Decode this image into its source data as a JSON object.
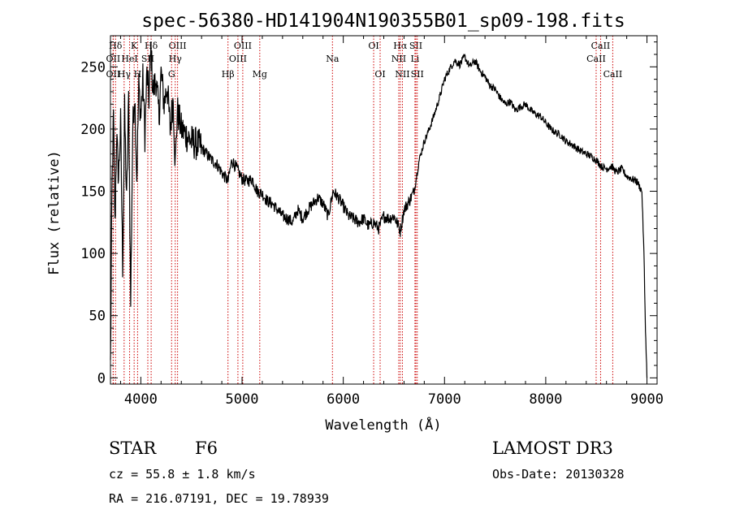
{
  "chart_data": {
    "type": "line",
    "title": "spec-56380-HD141904N190355B01_sp09-198.fits",
    "xlabel": "Wavelength (Å)",
    "ylabel": "Flux (relative)",
    "xlim": [
      3700,
      9100
    ],
    "ylim": [
      -5,
      275
    ],
    "xticks": [
      4000,
      5000,
      6000,
      7000,
      8000,
      9000
    ],
    "yticks": [
      0,
      50,
      100,
      150,
      200,
      250
    ],
    "grid": false,
    "series": [
      {
        "name": "spectrum",
        "x": [
          3700,
          3715,
          3730,
          3745,
          3760,
          3780,
          3800,
          3820,
          3840,
          3860,
          3880,
          3900,
          3920,
          3940,
          3960,
          3980,
          4000,
          4020,
          4040,
          4060,
          4080,
          4100,
          4120,
          4150,
          4180,
          4200,
          4230,
          4260,
          4290,
          4320,
          4340,
          4360,
          4400,
          4450,
          4500,
          4550,
          4600,
          4650,
          4700,
          4750,
          4800,
          4861,
          4900,
          4950,
          5000,
          5050,
          5100,
          5150,
          5200,
          5250,
          5300,
          5350,
          5400,
          5450,
          5500,
          5550,
          5600,
          5650,
          5700,
          5750,
          5800,
          5850,
          5900,
          5950,
          6000,
          6050,
          6100,
          6150,
          6200,
          6250,
          6300,
          6350,
          6400,
          6450,
          6500,
          6530,
          6563,
          6600,
          6650,
          6700,
          6750,
          6800,
          6850,
          6900,
          6950,
          7000,
          7050,
          7100,
          7150,
          7200,
          7250,
          7300,
          7350,
          7400,
          7450,
          7500,
          7550,
          7600,
          7650,
          7700,
          7750,
          7800,
          7850,
          7900,
          7950,
          8000,
          8050,
          8100,
          8150,
          8200,
          8250,
          8300,
          8350,
          8400,
          8450,
          8500,
          8550,
          8600,
          8650,
          8700,
          8750,
          8800,
          8850,
          8900,
          8950,
          8970,
          8985,
          9000
        ],
        "values": [
          10,
          150,
          210,
          120,
          195,
          160,
          205,
          90,
          215,
          140,
          225,
          60,
          200,
          230,
          160,
          235,
          210,
          240,
          195,
          245,
          225,
          265,
          230,
          240,
          210,
          245,
          220,
          235,
          200,
          225,
          170,
          215,
          200,
          195,
          190,
          188,
          185,
          180,
          175,
          172,
          165,
          158,
          175,
          168,
          160,
          158,
          160,
          150,
          148,
          142,
          140,
          135,
          130,
          128,
          125,
          135,
          128,
          135,
          140,
          145,
          140,
          130,
          150,
          145,
          138,
          130,
          128,
          125,
          128,
          122,
          125,
          120,
          130,
          128,
          130,
          125,
          118,
          135,
          142,
          150,
          175,
          190,
          200,
          212,
          225,
          240,
          248,
          255,
          252,
          258,
          250,
          255,
          247,
          242,
          235,
          232,
          225,
          220,
          222,
          215,
          218,
          220,
          215,
          212,
          210,
          205,
          200,
          197,
          195,
          190,
          188,
          185,
          182,
          180,
          178,
          175,
          170,
          168,
          170,
          165,
          168,
          162,
          160,
          158,
          150,
          100,
          40,
          0
        ]
      }
    ],
    "spectral_lines": [
      {
        "label": "Hδ",
        "wavelength": 3750,
        "row": 1
      },
      {
        "label": "K",
        "wavelength": 3934,
        "row": 1
      },
      {
        "label": "Hδ",
        "wavelength": 4102,
        "row": 1
      },
      {
        "label": "OII",
        "wavelength": 3727,
        "row": 2
      },
      {
        "label": "HeI",
        "wavelength": 3889,
        "row": 2
      },
      {
        "label": "SII",
        "wavelength": 4069,
        "row": 2
      },
      {
        "label": "OII",
        "wavelength": 3727,
        "row": 3
      },
      {
        "label": "Hγ",
        "wavelength": 3835,
        "row": 3
      },
      {
        "label": "H",
        "wavelength": 3968,
        "row": 3
      },
      {
        "label": "OIII",
        "wavelength": 4363,
        "row": 1
      },
      {
        "label": "Hγ",
        "wavelength": 4340,
        "row": 2
      },
      {
        "label": "G",
        "wavelength": 4304,
        "row": 3
      },
      {
        "label": "Hβ",
        "wavelength": 4861,
        "row": 3
      },
      {
        "label": "OIII",
        "wavelength": 5007,
        "row": 1
      },
      {
        "label": "OIII",
        "wavelength": 4959,
        "row": 2
      },
      {
        "label": "Mg",
        "wavelength": 5175,
        "row": 3
      },
      {
        "label": "Na",
        "wavelength": 5893,
        "row": 2
      },
      {
        "label": "OI",
        "wavelength": 6300,
        "row": 1
      },
      {
        "label": "OI",
        "wavelength": 6364,
        "row": 3
      },
      {
        "label": "Hα",
        "wavelength": 6563,
        "row": 1
      },
      {
        "label": "SII",
        "wavelength": 6717,
        "row": 1
      },
      {
        "label": "NII",
        "wavelength": 6548,
        "row": 2
      },
      {
        "label": "Li",
        "wavelength": 6708,
        "row": 2
      },
      {
        "label": "NII",
        "wavelength": 6584,
        "row": 3
      },
      {
        "label": "SII",
        "wavelength": 6731,
        "row": 3
      },
      {
        "label": "CaII",
        "wavelength": 8542,
        "row": 1
      },
      {
        "label": "CaII",
        "wavelength": 8498,
        "row": 2
      },
      {
        "label": "CaII",
        "wavelength": 8662,
        "row": 3
      }
    ]
  },
  "info": {
    "object_type": "STAR",
    "spectral_class": "F6",
    "survey": "LAMOST DR3",
    "redshift_line": "cz = 55.8 ± 1.8 km/s",
    "obs_date": "Obs-Date: 20130328",
    "coords": "RA = 216.07191, DEC =  19.78939"
  }
}
